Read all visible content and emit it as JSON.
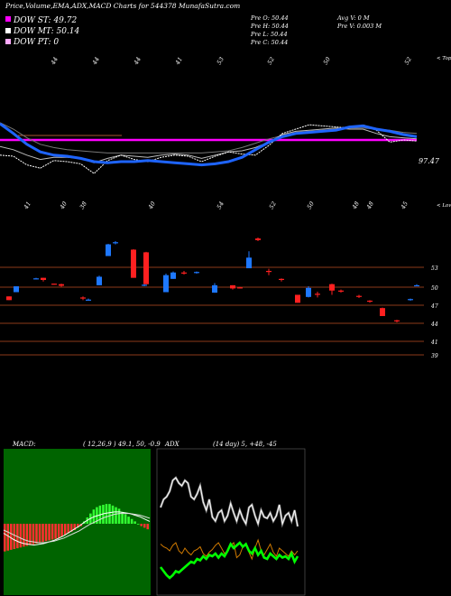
{
  "header": {
    "title": "Price,Volume,EMA,ADX,MACD Charts for 544378 MunafaSutra.com",
    "dow_st_label": "DOW ST: 49.72",
    "dow_mt_label": "DOW MT: 50.14",
    "dow_pt_label": "DOW PT: 0",
    "ohlc": [
      "Pre O: 50.44",
      "Pre H: 50.44",
      "Pre L: 50.44",
      "Pre C: 50.44"
    ],
    "avg_vol": "Avg V: 0  M",
    "pre_vol": "Pre V: 0.003 M"
  },
  "colors": {
    "background": "#000000",
    "up_candle": "#1e78ff",
    "down_candle": "#ff2020",
    "ema_short": "#ffffff",
    "ema_mid": "#bbbbbb",
    "ema_long": "#1e64ff",
    "dow_line": "#ff00ff",
    "resistance": "#8b3a1a",
    "macd_bg": "#006400",
    "macd_hist": "#ff3030",
    "adx_line": "#ffffff",
    "di_plus": "#00ff00",
    "di_minus": "#d07a00",
    "dow_st_swatch": "#ff00ff",
    "dow_mt_swatch": "#ffffff",
    "dow_pt_swatch": "#ffaaff"
  },
  "chart_data": [
    {
      "type": "line",
      "name": "price-ema",
      "top_tick_labels": [
        "44",
        "44",
        "44",
        "41",
        "53",
        "52",
        "50",
        "52"
      ],
      "bottom_tick_labels": [
        "41",
        "40",
        "38",
        "40",
        "54",
        "52",
        "50",
        "48",
        "48",
        "45"
      ],
      "right_top_label": "< Tops",
      "right_bottom_label": "< Lows",
      "last_price_label": "97.47",
      "dow_level": 50.0,
      "ema_short": [
        48.6,
        48.5,
        47.7,
        47.4,
        48.1,
        48.0,
        47.8,
        46.9,
        48.1,
        48.6,
        48.2,
        48.0,
        48.4,
        48.6,
        48.5,
        48.0,
        48.5,
        48.9,
        48.7,
        48.6,
        49.5,
        50.6,
        51.0,
        51.4,
        51.3,
        51.2,
        51.1,
        51.4,
        50.9,
        49.8,
        50.0,
        49.9
      ],
      "ema_mid": [
        49.4,
        49.1,
        48.6,
        48.2,
        48.4,
        48.4,
        48.3,
        47.9,
        48.3,
        48.6,
        48.5,
        48.4,
        48.6,
        48.7,
        48.6,
        48.3,
        48.6,
        48.9,
        49.0,
        49.3,
        49.8,
        50.5,
        50.8,
        50.9,
        51.0,
        51.1,
        51.0,
        51.0,
        50.6,
        50.3,
        50.2,
        50.1
      ],
      "ema_long": [
        51.5,
        50.6,
        49.6,
        48.9,
        48.6,
        48.5,
        48.3,
        48.0,
        47.9,
        48.0,
        48.0,
        48.1,
        48.0,
        47.9,
        47.8,
        47.7,
        47.8,
        48.0,
        48.4,
        49.1,
        49.8,
        50.3,
        50.6,
        50.7,
        50.8,
        50.9,
        51.2,
        51.3,
        51.0,
        50.8,
        50.5,
        50.3
      ],
      "ema_long_extra": [
        51.6,
        51.0,
        50.2,
        49.6,
        49.3,
        49.1,
        49.0,
        48.9,
        48.8,
        48.8,
        48.8,
        48.8,
        48.8,
        48.8,
        48.8,
        48.8,
        48.9,
        49.0,
        49.3,
        49.7,
        50.1,
        50.4,
        50.7,
        50.8,
        50.9,
        51.0,
        51.1,
        51.1,
        51.0,
        50.9,
        50.7,
        50.6
      ],
      "ylim": [
        45,
        55
      ]
    },
    {
      "type": "bar",
      "name": "candles",
      "right_tick_labels": [
        "53",
        "50",
        "47",
        "44",
        "41",
        "39"
      ],
      "candles": [
        {
          "o": 49.7,
          "c": 49.0,
          "h": 49.7,
          "l": 49.0
        },
        {
          "o": 50.5,
          "c": 51.6,
          "h": 51.6,
          "l": 50.5
        },
        {
          "o": 53.0,
          "c": 53.1,
          "h": 53.2,
          "l": 52.9
        },
        {
          "o": 53.2,
          "c": 52.8,
          "h": 53.2,
          "l": 52.5
        },
        {
          "o": 52.1,
          "c": 52.0,
          "h": 52.1,
          "l": 51.9
        },
        {
          "o": 52.0,
          "c": 51.7,
          "h": 52.1,
          "l": 51.5
        },
        {
          "o": 49.5,
          "c": 49.3,
          "h": 49.7,
          "l": 49.0
        },
        {
          "o": 48.9,
          "c": 49.1,
          "h": 49.3,
          "l": 48.9
        },
        {
          "o": 51.8,
          "c": 53.4,
          "h": 53.6,
          "l": 51.8
        },
        {
          "o": 57.3,
          "c": 59.5,
          "h": 59.6,
          "l": 57.3
        },
        {
          "o": 59.8,
          "c": 59.9,
          "h": 60.1,
          "l": 59.5
        },
        {
          "o": 58.5,
          "c": 53.2,
          "h": 58.6,
          "l": 53.2
        },
        {
          "o": 58.0,
          "c": 52.0,
          "h": 58.1,
          "l": 52.0
        },
        {
          "o": 51.8,
          "c": 51.9,
          "h": 52.0,
          "l": 51.6
        },
        {
          "o": 50.5,
          "c": 53.7,
          "h": 54.0,
          "l": 50.5
        },
        {
          "o": 53.0,
          "c": 54.2,
          "h": 54.4,
          "l": 53.0
        },
        {
          "o": 54.2,
          "c": 54.0,
          "h": 54.5,
          "l": 53.8
        },
        {
          "o": 54.2,
          "c": 54.3,
          "h": 54.4,
          "l": 54.0
        },
        {
          "o": 50.4,
          "c": 51.8,
          "h": 52.2,
          "l": 50.4
        },
        {
          "o": 51.8,
          "c": 51.2,
          "h": 51.8,
          "l": 51.0
        },
        {
          "o": 51.4,
          "c": 51.3,
          "h": 51.5,
          "l": 51.2
        },
        {
          "o": 55.0,
          "c": 57.0,
          "h": 58.2,
          "l": 55.0
        },
        {
          "o": 60.6,
          "c": 60.3,
          "h": 60.8,
          "l": 60.1
        },
        {
          "o": 54.5,
          "c": 54.4,
          "h": 54.9,
          "l": 53.7
        },
        {
          "o": 53.0,
          "c": 52.8,
          "h": 53.1,
          "l": 52.5
        },
        {
          "o": 50.0,
          "c": 48.5,
          "h": 50.0,
          "l": 48.5
        },
        {
          "o": 49.6,
          "c": 51.3,
          "h": 51.6,
          "l": 49.5
        },
        {
          "o": 50.2,
          "c": 50.0,
          "h": 50.6,
          "l": 49.5
        },
        {
          "o": 52.0,
          "c": 50.8,
          "h": 52.1,
          "l": 50.0
        },
        {
          "o": 50.8,
          "c": 50.6,
          "h": 51.0,
          "l": 50.4
        },
        {
          "o": 49.8,
          "c": 49.6,
          "h": 50.0,
          "l": 49.4
        },
        {
          "o": 48.9,
          "c": 48.7,
          "h": 49.0,
          "l": 48.5
        },
        {
          "o": 47.5,
          "c": 46.0,
          "h": 47.6,
          "l": 46.0
        },
        {
          "o": 45.2,
          "c": 45.0,
          "h": 45.3,
          "l": 44.8
        },
        {
          "o": 49.0,
          "c": 49.2,
          "h": 49.3,
          "l": 48.9
        },
        {
          "o": 51.7,
          "c": 51.8,
          "h": 52.0,
          "l": 51.6
        }
      ],
      "levels": [
        53,
        50,
        47,
        44,
        41,
        39
      ],
      "ylim": [
        37.5,
        63
      ]
    },
    {
      "type": "area",
      "name": "macd",
      "title": "MACD:",
      "params": "( 12,26,9 ) 49.1, 50, -0.9",
      "histogram": [
        -3.5,
        -3.4,
        -3.3,
        -3.2,
        -3.1,
        -3.0,
        -2.9,
        -2.8,
        -2.7,
        -2.6,
        -2.5,
        -2.4,
        -2.3,
        -2.2,
        -2.1,
        -2.0,
        -1.9,
        -1.8,
        -1.6,
        -1.4,
        -1.2,
        -1.0,
        -0.8,
        -0.5,
        -0.3,
        0.3,
        0.8,
        1.3,
        1.8,
        2.1,
        2.3,
        2.4,
        2.5,
        2.5,
        2.3,
        2.1,
        1.9,
        1.5,
        1.2,
        0.9,
        0.6,
        0.3,
        0.0,
        -0.3,
        -0.5,
        -0.7
      ],
      "macd_line": [
        -1.2,
        -1.6,
        -2.0,
        -2.3,
        -2.5,
        -2.6,
        -2.7,
        -2.6,
        -2.5,
        -2.3,
        -2.1,
        -1.8,
        -1.5,
        -1.1,
        -0.7,
        -0.3,
        0.2,
        0.6,
        0.9,
        1.1,
        1.3,
        1.4,
        1.5,
        1.5,
        1.4,
        1.3,
        1.1,
        0.9,
        0.6,
        0.3
      ],
      "signal_line": [
        -0.8,
        -1.1,
        -1.4,
        -1.7,
        -2.0,
        -2.2,
        -2.3,
        -2.4,
        -2.4,
        -2.3,
        -2.2,
        -2.0,
        -1.8,
        -1.5,
        -1.2,
        -0.9,
        -0.5,
        -0.1,
        0.2,
        0.5,
        0.8,
        1.0,
        1.2,
        1.3,
        1.3,
        1.3,
        1.2,
        1.1,
        0.9,
        0.7
      ],
      "ylim": [
        -8,
        8
      ]
    },
    {
      "type": "line",
      "name": "adx",
      "title": "ADX",
      "params": "(14  day) 5, +48, -45",
      "adx": [
        62,
        68,
        70,
        74,
        82,
        84,
        80,
        78,
        82,
        80,
        70,
        68,
        72,
        78,
        66,
        60,
        68,
        55,
        52,
        58,
        60,
        52,
        56,
        65,
        58,
        52,
        60,
        54,
        50,
        62,
        64,
        56,
        50,
        60,
        55,
        54,
        58,
        52,
        56,
        64,
        50,
        56,
        58,
        52,
        60,
        48
      ],
      "di_plus": [
        18,
        15,
        12,
        10,
        12,
        15,
        14,
        16,
        18,
        20,
        22,
        21,
        24,
        23,
        26,
        24,
        27,
        26,
        28,
        25,
        28,
        26,
        30,
        35,
        32,
        34,
        36,
        33,
        35,
        30,
        28,
        32,
        27,
        30,
        25,
        24,
        28,
        26,
        24,
        27,
        25,
        26,
        24,
        28,
        22,
        26
      ],
      "di_minus": [
        35,
        33,
        32,
        30,
        34,
        36,
        30,
        28,
        32,
        29,
        27,
        30,
        31,
        33,
        28,
        26,
        29,
        31,
        34,
        36,
        32,
        28,
        30,
        34,
        36,
        25,
        27,
        33,
        35,
        29,
        24,
        32,
        38,
        30,
        27,
        31,
        35,
        29,
        26,
        32,
        30,
        28,
        26,
        30,
        27,
        30
      ],
      "ylim": [
        0,
        100
      ]
    }
  ]
}
